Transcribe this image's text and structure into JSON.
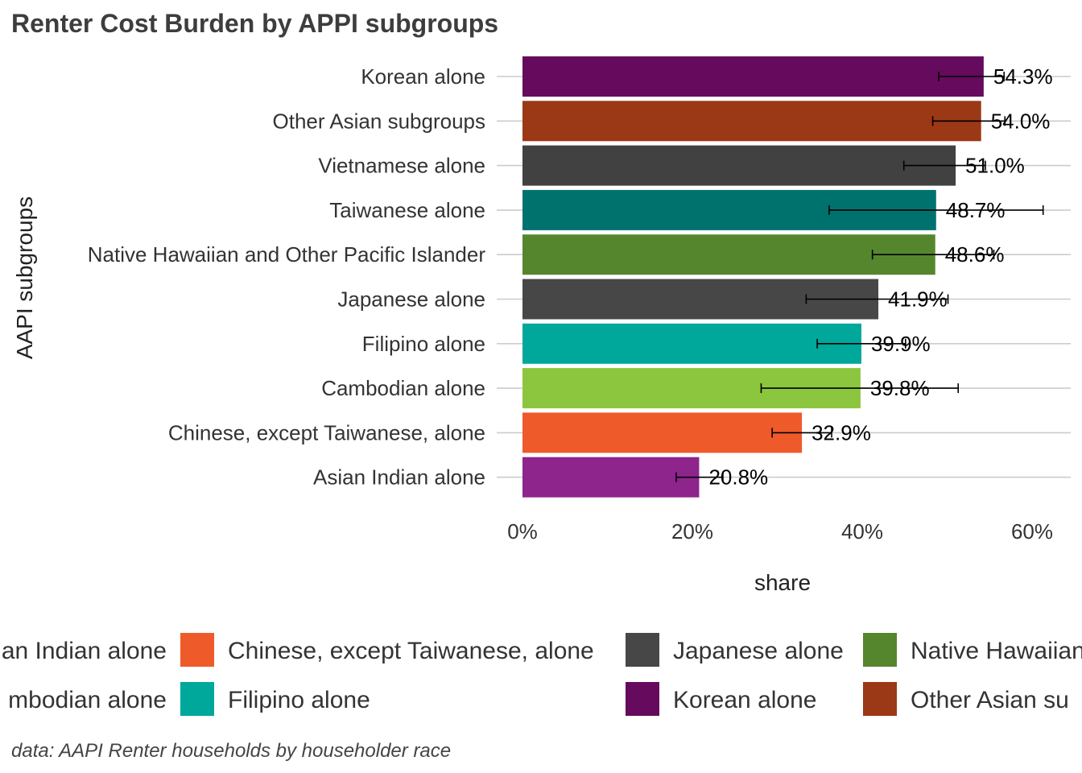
{
  "chart_data": {
    "type": "bar",
    "orientation": "horizontal",
    "title": "Renter Cost Burden by APPI subgroups",
    "xlabel": "share",
    "ylabel": "AAPI subgroups",
    "caption": "data: AAPI Renter households by householder race",
    "xlim": [
      0,
      0.6
    ],
    "x_ticks": [
      {
        "value": 0,
        "label": "0%"
      },
      {
        "value": 0.2,
        "label": "20%"
      },
      {
        "value": 0.4,
        "label": "40%"
      },
      {
        "value": 0.6,
        "label": "60%"
      }
    ],
    "grid": true,
    "legend_position": "bottom",
    "categories": [
      "Korean alone",
      "Other Asian subgroups",
      "Vietnamese alone",
      "Taiwanese alone",
      "Native Hawaiian and Other Pacific Islander",
      "Japanese alone",
      "Filipino alone",
      "Cambodian alone",
      "Chinese, except Taiwanese, alone",
      "Asian Indian alone"
    ],
    "values": [
      0.543,
      0.54,
      0.51,
      0.487,
      0.486,
      0.419,
      0.399,
      0.398,
      0.329,
      0.208
    ],
    "labels": [
      "54.3%",
      "54.0%",
      "51.0%",
      "48.7%",
      "48.6%",
      "41.9%",
      "39.9%",
      "39.8%",
      "32.9%",
      "20.8%"
    ],
    "error_low": [
      0.49,
      0.483,
      0.449,
      0.361,
      0.412,
      0.334,
      0.347,
      0.281,
      0.294,
      0.181
    ],
    "error_high": [
      0.567,
      0.568,
      0.545,
      0.613,
      0.555,
      0.501,
      0.451,
      0.513,
      0.364,
      0.236
    ],
    "colors": [
      "#650A5C",
      "#9B3815",
      "#414141",
      "#00726E",
      "#55862D",
      "#474747",
      "#00A79B",
      "#8CC63E",
      "#EF5A2B",
      "#8D258D"
    ],
    "legend": {
      "items": [
        {
          "label": "an Indian alone",
          "color": "#8D258D"
        },
        {
          "label": "Chinese, except Taiwanese, alone",
          "color": "#EF5A2B"
        },
        {
          "label": "Japanese alone",
          "color": "#474747"
        },
        {
          "label": "Native Hawaiian",
          "color": "#55862D"
        },
        {
          "label": "mbodian alone",
          "color": "#8CC63E"
        },
        {
          "label": "Filipino alone",
          "color": "#00A79B"
        },
        {
          "label": "Korean alone",
          "color": "#650A5C"
        },
        {
          "label": "Other Asian su",
          "color": "#9B3815"
        }
      ]
    }
  }
}
